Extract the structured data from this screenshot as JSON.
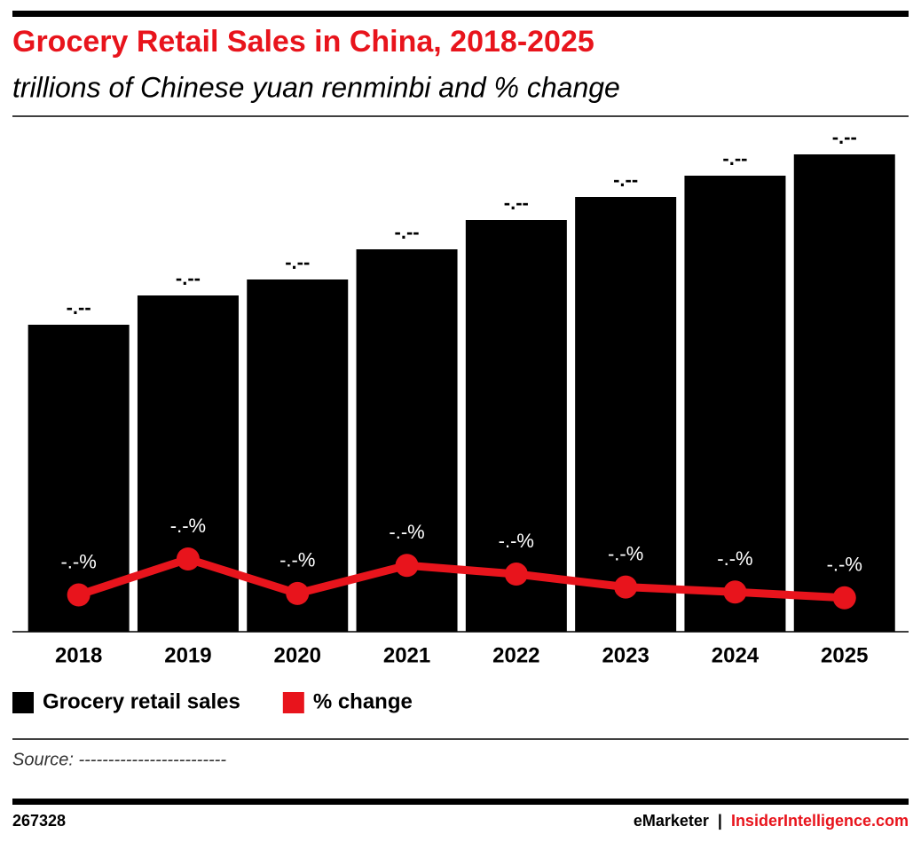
{
  "chart_data": {
    "type": "bar",
    "title": "Grocery Retail Sales in China, 2018-2025",
    "subtitle": "trillions of Chinese yuan renminbi and % change",
    "categories": [
      "2018",
      "2019",
      "2020",
      "2021",
      "2022",
      "2023",
      "2024",
      "2025"
    ],
    "series": [
      {
        "name": "Grocery retail sales",
        "color": "#000000",
        "values": [
          3.46,
          3.79,
          3.97,
          4.31,
          4.64,
          4.9,
          5.14,
          5.38
        ],
        "value_labels": [
          "-.--",
          "-.--",
          "-.--",
          "-.--",
          "-.--",
          "-.--",
          "-.--",
          "-.--"
        ]
      },
      {
        "name": "% change",
        "color": "#e8141c",
        "type": "line",
        "axis": "y2",
        "values": [
          4.5,
          9.5,
          4.7,
          8.6,
          7.4,
          5.6,
          4.9,
          4.1
        ],
        "value_labels": [
          "-.-%",
          "-.-%",
          "-.-%",
          "-.-%",
          "-.-%",
          "-.-%",
          "-.-%",
          "-.-%"
        ]
      }
    ],
    "source": "Source: -------------------------"
  },
  "footer": {
    "id": "267328",
    "brand": "eMarketer",
    "separator": "|",
    "site": "InsiderIntelligence.com"
  }
}
